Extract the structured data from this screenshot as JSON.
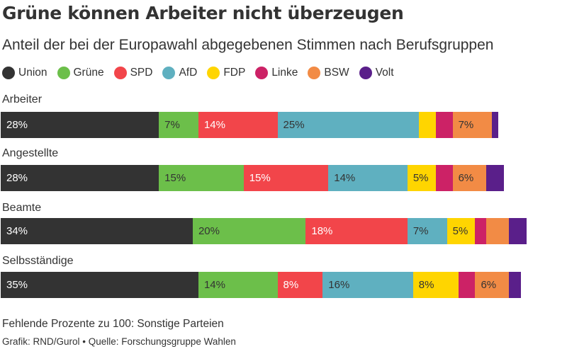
{
  "title": "Grüne können Arbeiter nicht überzeugen",
  "subtitle": "Anteil der bei der Europawahl abgegebenen Stimmen nach Berufsgruppen",
  "footnote": "Fehlende Prozente zu 100: Sonstige Parteien",
  "source_line": "Grafik: RND/Gurol • Quelle: Forschungsgruppe Wahlen",
  "colors": {
    "Union": "#333333",
    "Grüne": "#6cbf4a",
    "SPD": "#f2454a",
    "AfD": "#5fb0c0",
    "FDP": "#ffd500",
    "Linke": "#cc2266",
    "BSW": "#f28b45",
    "Volt": "#5a1f8a"
  },
  "chart_data": {
    "type": "bar",
    "orientation": "horizontal",
    "stacked": true,
    "title": "Grüne können Arbeiter nicht überzeugen",
    "subtitle": "Anteil der bei der Europawahl abgegebenen Stimmen nach Berufsgruppen",
    "categories": [
      "Arbeiter",
      "Angestellte",
      "Beamte",
      "Selbsständige"
    ],
    "unit": "%",
    "xlim": [
      0,
      100
    ],
    "legend_position": "top-left",
    "series": [
      {
        "name": "Union",
        "values": [
          28,
          28,
          34,
          35
        ],
        "labels": [
          "28%",
          "28%",
          "34%",
          "35%"
        ]
      },
      {
        "name": "Grüne",
        "values": [
          7,
          15,
          20,
          14
        ],
        "labels": [
          "7%",
          "15%",
          "20%",
          "14%"
        ]
      },
      {
        "name": "SPD",
        "values": [
          14,
          15,
          18,
          8
        ],
        "labels": [
          "14%",
          "15%",
          "18%",
          "8%"
        ]
      },
      {
        "name": "AfD",
        "values": [
          25,
          14,
          7,
          16
        ],
        "labels": [
          "25%",
          "14%",
          "7%",
          "16%"
        ]
      },
      {
        "name": "FDP",
        "values": [
          3,
          5,
          5,
          8
        ],
        "labels": [
          "",
          "5%",
          "5%",
          "8%"
        ]
      },
      {
        "name": "Linke",
        "values": [
          3,
          3,
          2,
          3
        ],
        "labels": [
          "",
          "",
          "",
          ""
        ]
      },
      {
        "name": "BSW",
        "values": [
          7,
          6,
          4,
          6
        ],
        "labels": [
          "7%",
          "6%",
          "",
          "6%"
        ]
      },
      {
        "name": "Volt",
        "values": [
          1,
          3,
          3,
          2
        ],
        "labels": [
          "",
          "",
          "",
          ""
        ]
      }
    ]
  }
}
